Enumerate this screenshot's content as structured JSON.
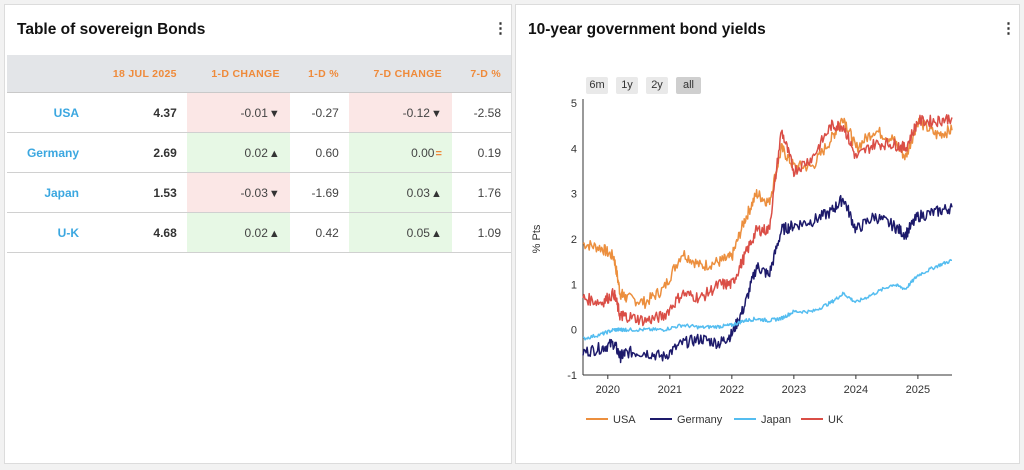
{
  "left_panel": {
    "title": "Table of sovereign Bonds",
    "menu": "⋮",
    "headers": [
      "",
      "18 JUL 2025",
      "1-D CHANGE",
      "1-D %",
      "7-D CHANGE",
      "7-D %"
    ],
    "rows": [
      {
        "country": "USA",
        "value": "4.37",
        "d1": "-0.01",
        "d1_dir": "down",
        "d1pct": "-0.27",
        "d7": "-0.12",
        "d7_dir": "down",
        "d7pct": "-2.58"
      },
      {
        "country": "Germany",
        "value": "2.69",
        "d1": "0.02",
        "d1_dir": "up",
        "d1pct": "0.60",
        "d7": "0.00",
        "d7_dir": "flat",
        "d7pct": "0.19"
      },
      {
        "country": "Japan",
        "value": "1.53",
        "d1": "-0.03",
        "d1_dir": "down",
        "d1pct": "-1.69",
        "d7": "0.03",
        "d7_dir": "up",
        "d7pct": "1.76"
      },
      {
        "country": "U-K",
        "value": "4.68",
        "d1": "0.02",
        "d1_dir": "up",
        "d1pct": "0.42",
        "d7": "0.05",
        "d7_dir": "up",
        "d7pct": "1.09"
      }
    ]
  },
  "right_panel": {
    "title": "10-year government bond yields",
    "menu": "⋮",
    "range_buttons": [
      "6m",
      "1y",
      "2y",
      "all"
    ],
    "active_range": "all"
  },
  "colors": {
    "USA": "#ec8f3e",
    "Germany": "#1d1a6b",
    "Japan": "#54bdf0",
    "UK": "#da4e46",
    "neg_bg": "#fbe7e6",
    "pos_bg": "#e7f8e5",
    "header_text": "#ef8a3a"
  },
  "chart_data": {
    "type": "line",
    "title": "",
    "xlabel": "",
    "ylabel": "% Pts",
    "xlim": [
      2019.6,
      2025.55
    ],
    "ylim": [
      -1,
      5
    ],
    "x_ticks": [
      "2020",
      "2021",
      "2022",
      "2023",
      "2024",
      "2025"
    ],
    "y_ticks": [
      "-1",
      "0",
      "1",
      "2",
      "3",
      "4",
      "5"
    ],
    "legend_position": "bottom",
    "x": [
      2019.6,
      2019.9,
      2020.1,
      2020.2,
      2020.3,
      2020.6,
      2020.9,
      2021.2,
      2021.5,
      2021.8,
      2022.0,
      2022.2,
      2022.4,
      2022.6,
      2022.8,
      2023.0,
      2023.3,
      2023.6,
      2023.8,
      2024.0,
      2024.3,
      2024.6,
      2024.8,
      2025.0,
      2025.3,
      2025.55
    ],
    "series": [
      {
        "name": "USA",
        "values": [
          1.9,
          1.8,
          1.6,
          0.8,
          0.7,
          0.6,
          0.9,
          1.7,
          1.4,
          1.5,
          1.6,
          2.4,
          3.0,
          2.8,
          4.0,
          3.6,
          3.6,
          4.2,
          4.7,
          4.0,
          4.4,
          4.2,
          3.8,
          4.6,
          4.3,
          4.4
        ]
      },
      {
        "name": "Germany",
        "values": [
          -0.5,
          -0.4,
          -0.3,
          -0.6,
          -0.5,
          -0.5,
          -0.6,
          -0.3,
          -0.2,
          -0.3,
          -0.1,
          0.5,
          1.4,
          1.2,
          2.2,
          2.3,
          2.4,
          2.6,
          2.9,
          2.2,
          2.5,
          2.3,
          2.1,
          2.5,
          2.6,
          2.7
        ]
      },
      {
        "name": "Japan",
        "values": [
          -0.2,
          -0.1,
          0.0,
          0.0,
          0.0,
          0.0,
          0.0,
          0.1,
          0.05,
          0.07,
          0.1,
          0.2,
          0.24,
          0.2,
          0.25,
          0.4,
          0.4,
          0.6,
          0.8,
          0.6,
          0.8,
          1.0,
          0.9,
          1.2,
          1.4,
          1.53
        ]
      },
      {
        "name": "UK",
        "values": [
          0.7,
          0.6,
          0.8,
          0.3,
          0.3,
          0.2,
          0.3,
          0.8,
          0.7,
          1.0,
          1.0,
          1.6,
          2.2,
          2.2,
          4.4,
          3.5,
          3.8,
          4.5,
          4.5,
          3.8,
          4.1,
          4.1,
          4.0,
          4.6,
          4.6,
          4.68
        ]
      }
    ]
  }
}
